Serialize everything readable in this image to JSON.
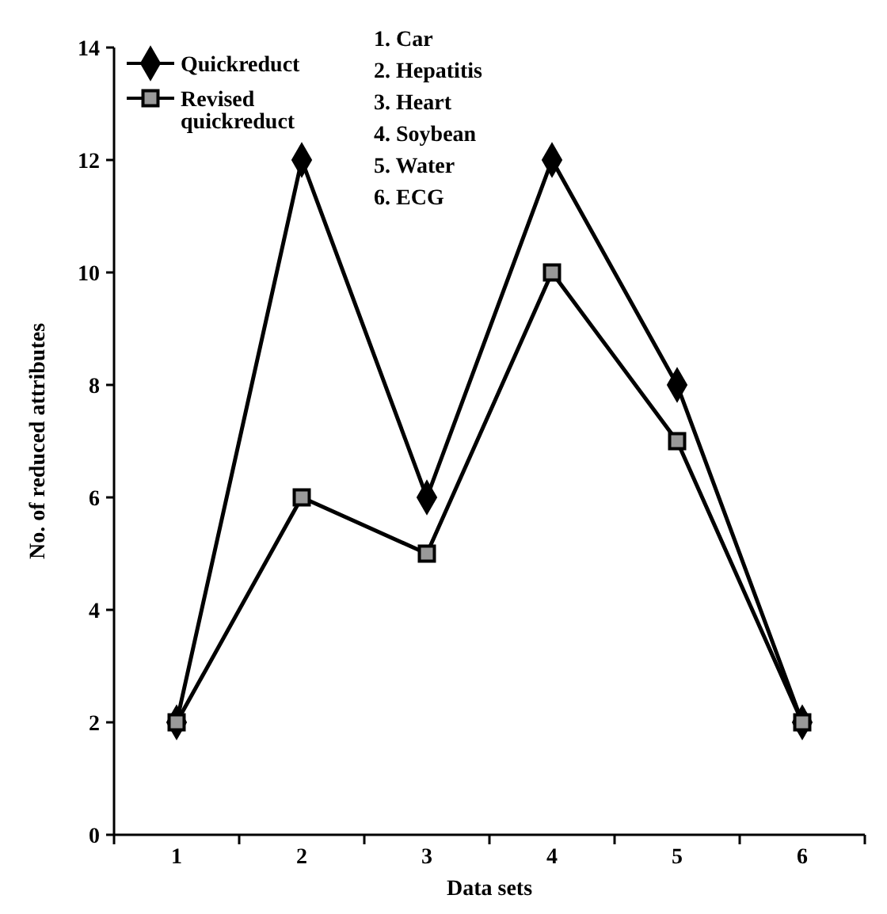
{
  "chart_data": {
    "type": "line",
    "xlabel": "Data sets",
    "ylabel": "No. of reduced attributes",
    "categories": [
      "1",
      "2",
      "3",
      "4",
      "5",
      "6"
    ],
    "series": [
      {
        "name": "Quickreduct",
        "color": "#000000",
        "marker": "diamond",
        "values": [
          2,
          12,
          6,
          12,
          8,
          2
        ]
      },
      {
        "name": "Revised quickreduct",
        "color": "#000000",
        "marker": "square",
        "values": [
          2,
          6,
          5,
          10,
          7,
          2
        ]
      }
    ],
    "ylim": [
      0,
      14
    ],
    "yticks": [
      0,
      2,
      4,
      6,
      8,
      10,
      12,
      14
    ],
    "grid": false,
    "legend": "top left",
    "line_style": "solid",
    "annotations": [
      "1. Car",
      "2. Hepatitis",
      "3. Heart",
      "4. Soybean",
      "5. Water",
      "6. ECG"
    ]
  }
}
